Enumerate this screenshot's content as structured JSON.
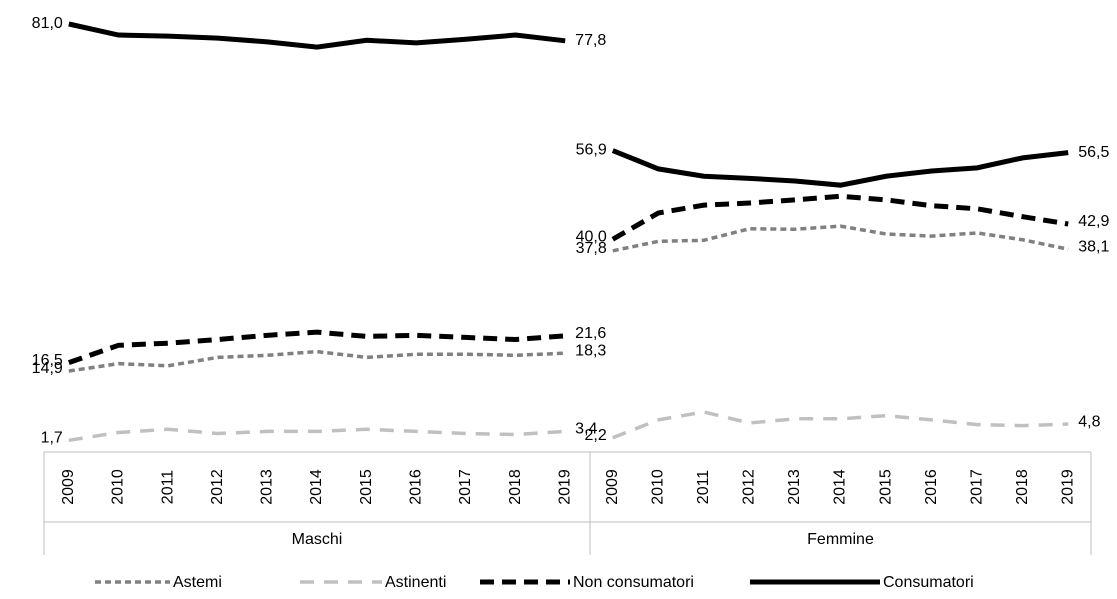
{
  "chart_data": {
    "type": "line",
    "groups": [
      {
        "name": "Maschi",
        "categories": [
          "2009",
          "2010",
          "2011",
          "2012",
          "2013",
          "2014",
          "2015",
          "2016",
          "2017",
          "2018",
          "2019"
        ]
      },
      {
        "name": "Femmine",
        "categories": [
          "2009",
          "2010",
          "2011",
          "2012",
          "2013",
          "2014",
          "2015",
          "2016",
          "2017",
          "2018",
          "2019"
        ]
      }
    ],
    "series": [
      {
        "name": "Astemi",
        "color": "#808080",
        "values": [
          [
            14.9,
            16.3,
            15.9,
            17.5,
            17.9,
            18.6,
            17.5,
            18.1,
            18.1,
            17.9,
            18.3
          ],
          [
            37.8,
            39.6,
            39.8,
            42.0,
            41.9,
            42.5,
            41.0,
            40.6,
            41.2,
            39.9,
            38.1
          ]
        ],
        "value_labels": [
          [
            "14,9",
            null,
            null,
            null,
            null,
            null,
            null,
            null,
            null,
            null,
            "18,3"
          ],
          [
            "37,8",
            null,
            null,
            null,
            null,
            null,
            null,
            null,
            null,
            null,
            "38,1"
          ]
        ]
      },
      {
        "name": "Astinenti",
        "color": "#c0c0c0",
        "values": [
          [
            1.7,
            3.2,
            3.8,
            3.0,
            3.4,
            3.4,
            3.8,
            3.4,
            3.0,
            2.8,
            3.4
          ],
          [
            2.2,
            5.6,
            7.1,
            5.0,
            5.8,
            5.8,
            6.4,
            5.6,
            4.7,
            4.5,
            4.8
          ]
        ],
        "value_labels": [
          [
            "1,7",
            null,
            null,
            null,
            null,
            null,
            null,
            null,
            null,
            null,
            "3,4"
          ],
          [
            "2,2",
            null,
            null,
            null,
            null,
            null,
            null,
            null,
            null,
            null,
            "4,8"
          ]
        ]
      },
      {
        "name": "Non consumatori",
        "color": "#000000",
        "values": [
          [
            16.5,
            19.8,
            20.2,
            20.9,
            21.7,
            22.3,
            21.5,
            21.7,
            21.3,
            20.9,
            21.6
          ],
          [
            40.0,
            45.0,
            46.5,
            46.9,
            47.5,
            48.2,
            47.5,
            46.4,
            45.8,
            44.3,
            42.9
          ]
        ],
        "value_labels": [
          [
            "16,5",
            null,
            null,
            null,
            null,
            null,
            null,
            null,
            null,
            null,
            "21,6"
          ],
          [
            "40,0",
            null,
            null,
            null,
            null,
            null,
            null,
            null,
            null,
            null,
            "42,9"
          ]
        ]
      },
      {
        "name": "Consumatori",
        "color": "#000000",
        "values": [
          [
            81.0,
            78.9,
            78.7,
            78.3,
            77.6,
            76.6,
            77.9,
            77.4,
            78.1,
            78.9,
            77.8
          ],
          [
            56.9,
            53.4,
            52.0,
            51.6,
            51.1,
            50.3,
            52.0,
            53.0,
            53.6,
            55.5,
            56.5
          ]
        ],
        "value_labels": [
          [
            "81,0",
            null,
            null,
            null,
            null,
            null,
            null,
            null,
            null,
            null,
            "77,8"
          ],
          [
            "56,9",
            null,
            null,
            null,
            null,
            null,
            null,
            null,
            null,
            null,
            "56,5"
          ]
        ]
      }
    ]
  }
}
